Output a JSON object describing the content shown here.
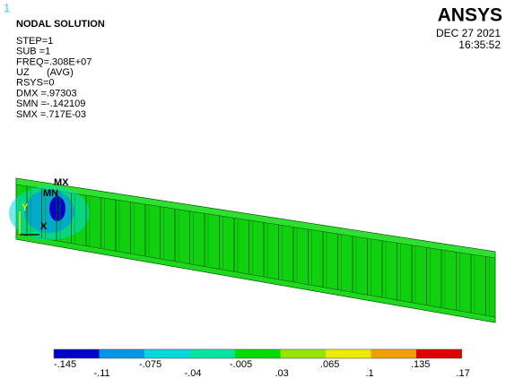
{
  "window_number": "1",
  "header": {
    "title": "NODAL SOLUTION",
    "lines": [
      "STEP=1",
      "SUB =1",
      "FREQ=.308E+07",
      "UZ",
      "RSYS=0",
      "DMX =.97303",
      "SMN =-.142109",
      "SMX =.717E-03"
    ],
    "avg": "(AVG)"
  },
  "logo": "ANSYS",
  "date": "DEC 27 2021",
  "time": "16:35:52",
  "model_labels": {
    "max": "MX",
    "min": "MN",
    "y_axis": "Y",
    "x_axis": "X"
  },
  "legend": {
    "labels": [
      "-.145",
      "-.11",
      "-.075",
      "-.04",
      "-.005",
      ".03",
      ".065",
      ".1",
      ".135",
      ".17"
    ],
    "colors": [
      "#0000c8",
      "#0096e6",
      "#00d8e0",
      "#00e6a0",
      "#00dc00",
      "#96e600",
      "#ecec00",
      "#f0a000",
      "#e00000"
    ]
  }
}
